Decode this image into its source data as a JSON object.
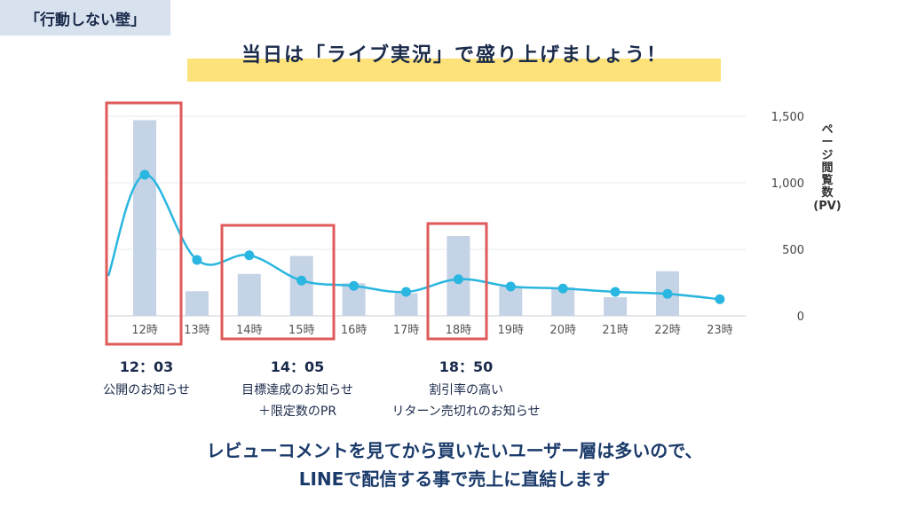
{
  "tag_label": "「行動しない壁」",
  "headline": "当日は「ライブ実況」で盛り上げましょう！",
  "chart_data": {
    "type": "bar",
    "categories": [
      "12時",
      "13時",
      "14時",
      "15時",
      "16時",
      "17時",
      "18時",
      "19時",
      "20時",
      "21時",
      "22時",
      "23時"
    ],
    "series": [
      {
        "type": "bar",
        "values": [
          1470,
          185,
          315,
          450,
          245,
          170,
          600,
          220,
          215,
          140,
          335,
          0
        ]
      },
      {
        "type": "line",
        "values": [
          1060,
          420,
          455,
          265,
          225,
          180,
          275,
          220,
          205,
          180,
          165,
          125
        ]
      }
    ],
    "ylabel": "ページ閲覧数(PV)",
    "ylim": [
      0,
      1500
    ],
    "y_ticks": [
      "0",
      "500",
      "1,000",
      "1,500"
    ],
    "grid": true,
    "colors": {
      "bar": "#c5d3e6",
      "line": "#29b6e0",
      "box": "#e05a5a"
    }
  },
  "y_axis_title": {
    "chars": [
      "ペ",
      "ー",
      "ジ",
      "閲",
      "覧",
      "数"
    ],
    "unit": "(PV)"
  },
  "annotations": [
    {
      "time": "12：03",
      "lines": [
        "公開のお知らせ"
      ]
    },
    {
      "time": "14：05",
      "lines": [
        "目標達成のお知らせ",
        "＋限定数のPR"
      ]
    },
    {
      "time": "18：50",
      "lines": [
        "割引率の高い",
        "リターン売切れのお知らせ"
      ]
    }
  ],
  "bottom_text": {
    "line1": "レビューコメントを見てから買いたいユーザー層は多いので、",
    "line2": "LINEで配信する事で売上に直結します"
  }
}
